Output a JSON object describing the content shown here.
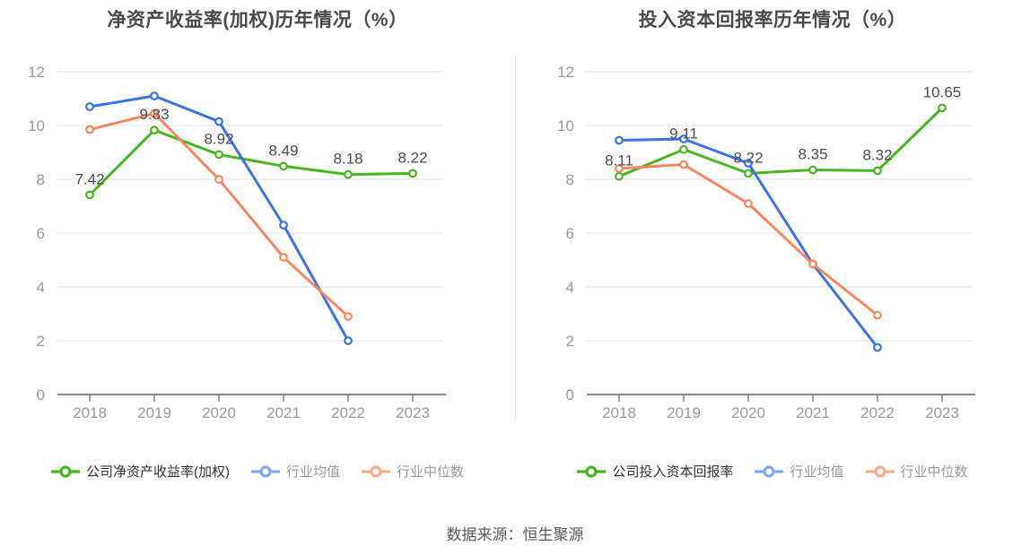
{
  "footer": {
    "source_label": "数据来源：恒生聚源"
  },
  "chart_data": [
    {
      "type": "line",
      "title": "净资产收益率(加权)历年情况（%）",
      "categories": [
        "2018",
        "2019",
        "2020",
        "2021",
        "2022",
        "2023"
      ],
      "ylim": [
        0,
        12
      ],
      "yticks": [
        0,
        2,
        4,
        6,
        8,
        10,
        12
      ],
      "grid": true,
      "legend_position": "bottom",
      "series": [
        {
          "name": "公司净资产收益率(加权)",
          "values": [
            7.42,
            9.83,
            8.92,
            8.49,
            8.18,
            8.22
          ],
          "data_labels": [
            "7.42",
            "9.83",
            "8.92",
            "8.49",
            "8.18",
            "8.22"
          ],
          "color": "#49b522",
          "legend_color": "#49b522",
          "legend_text_color": "#333333"
        },
        {
          "name": "行业均值",
          "values": [
            10.7,
            11.1,
            10.15,
            6.3,
            2.0,
            null
          ],
          "data_labels": null,
          "color": "#3b73e3",
          "legend_color": "#7fa8f1",
          "legend_text_color": "#999999"
        },
        {
          "name": "行业中位数",
          "values": [
            9.85,
            10.45,
            8.0,
            5.1,
            2.9,
            null
          ],
          "data_labels": null,
          "color": "#f7875f",
          "legend_color": "#f9ad90",
          "legend_text_color": "#999999"
        }
      ]
    },
    {
      "type": "line",
      "title": "投入资本回报率历年情况（%）",
      "categories": [
        "2018",
        "2019",
        "2020",
        "2021",
        "2022",
        "2023"
      ],
      "ylim": [
        0,
        12
      ],
      "yticks": [
        0,
        2,
        4,
        6,
        8,
        10,
        12
      ],
      "grid": true,
      "legend_position": "bottom",
      "series": [
        {
          "name": "公司投入资本回报率",
          "values": [
            8.11,
            9.11,
            8.22,
            8.35,
            8.32,
            10.65
          ],
          "data_labels": [
            "8.11",
            "9.11",
            "8.22",
            "8.35",
            "8.32",
            "10.65"
          ],
          "color": "#49b522",
          "legend_color": "#49b522",
          "legend_text_color": "#333333"
        },
        {
          "name": "行业均值",
          "values": [
            9.45,
            9.5,
            8.6,
            4.85,
            1.75,
            null
          ],
          "data_labels": null,
          "color": "#3b73e3",
          "legend_color": "#7fa8f1",
          "legend_text_color": "#999999"
        },
        {
          "name": "行业中位数",
          "values": [
            8.4,
            8.55,
            7.1,
            4.85,
            2.95,
            null
          ],
          "data_labels": null,
          "color": "#f7875f",
          "legend_color": "#f9ad90",
          "legend_text_color": "#999999"
        }
      ]
    }
  ]
}
